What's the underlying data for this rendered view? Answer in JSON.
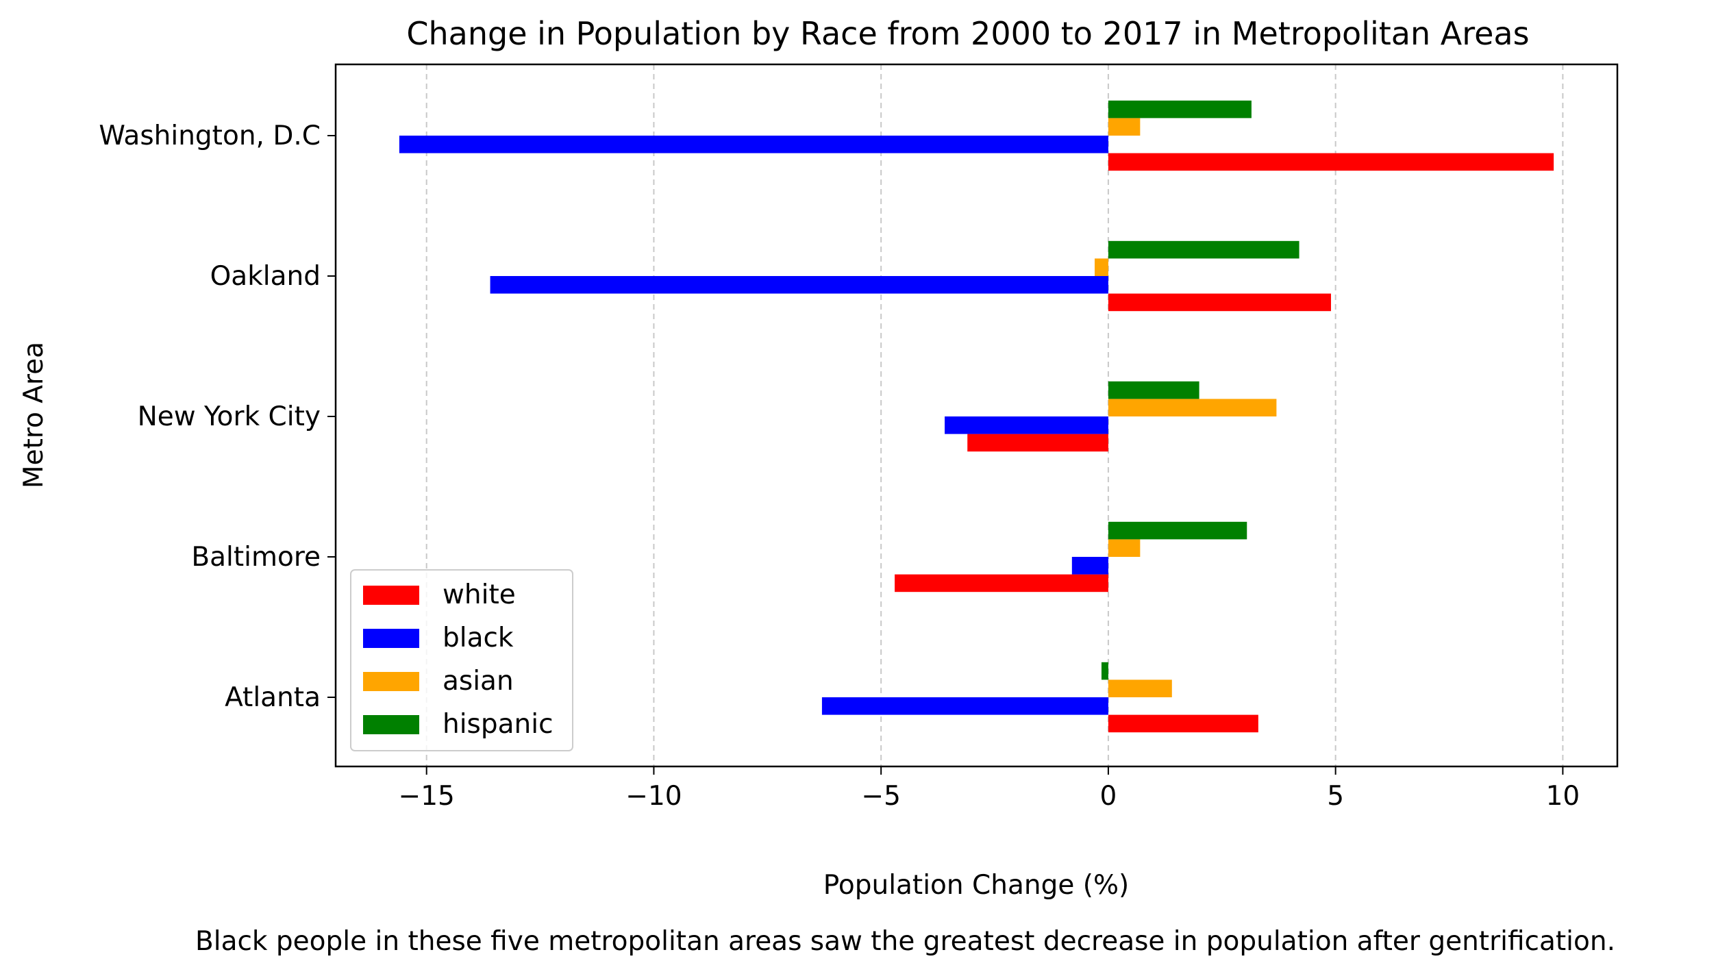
{
  "chart_data": {
    "type": "bar",
    "orientation": "horizontal",
    "title": "Change in Population by Race from 2000 to 2017 in Metropolitan Areas",
    "xlabel": "Population Change (%)",
    "ylabel": "Metro Area",
    "caption": "Black people in these five metropolitan areas saw the greatest decrease in population after gentrification.",
    "categories": [
      "Atlanta",
      "Baltimore",
      "New York City",
      "Oakland",
      "Washington, D.C"
    ],
    "xlim": [
      -17,
      11.2
    ],
    "xticks": [
      -15,
      -10,
      -5,
      0,
      5,
      10
    ],
    "xtick_labels": [
      "−15",
      "−10",
      "−5",
      "0",
      "5",
      "10"
    ],
    "grid": "x-axis dashed",
    "legend_position": "lower-left",
    "series": [
      {
        "name": "white",
        "color": "#ff0000",
        "values": [
          3.3,
          -4.7,
          -3.1,
          4.9,
          9.8
        ]
      },
      {
        "name": "black",
        "color": "#0000ff",
        "values": [
          -6.3,
          -0.8,
          -3.6,
          -13.6,
          -15.6
        ]
      },
      {
        "name": "asian",
        "color": "#ffa500",
        "values": [
          1.4,
          0.7,
          3.7,
          -0.3,
          0.7
        ]
      },
      {
        "name": "hispanic",
        "color": "#008000",
        "values": [
          -0.15,
          3.05,
          2.0,
          4.2,
          3.15
        ]
      }
    ]
  }
}
